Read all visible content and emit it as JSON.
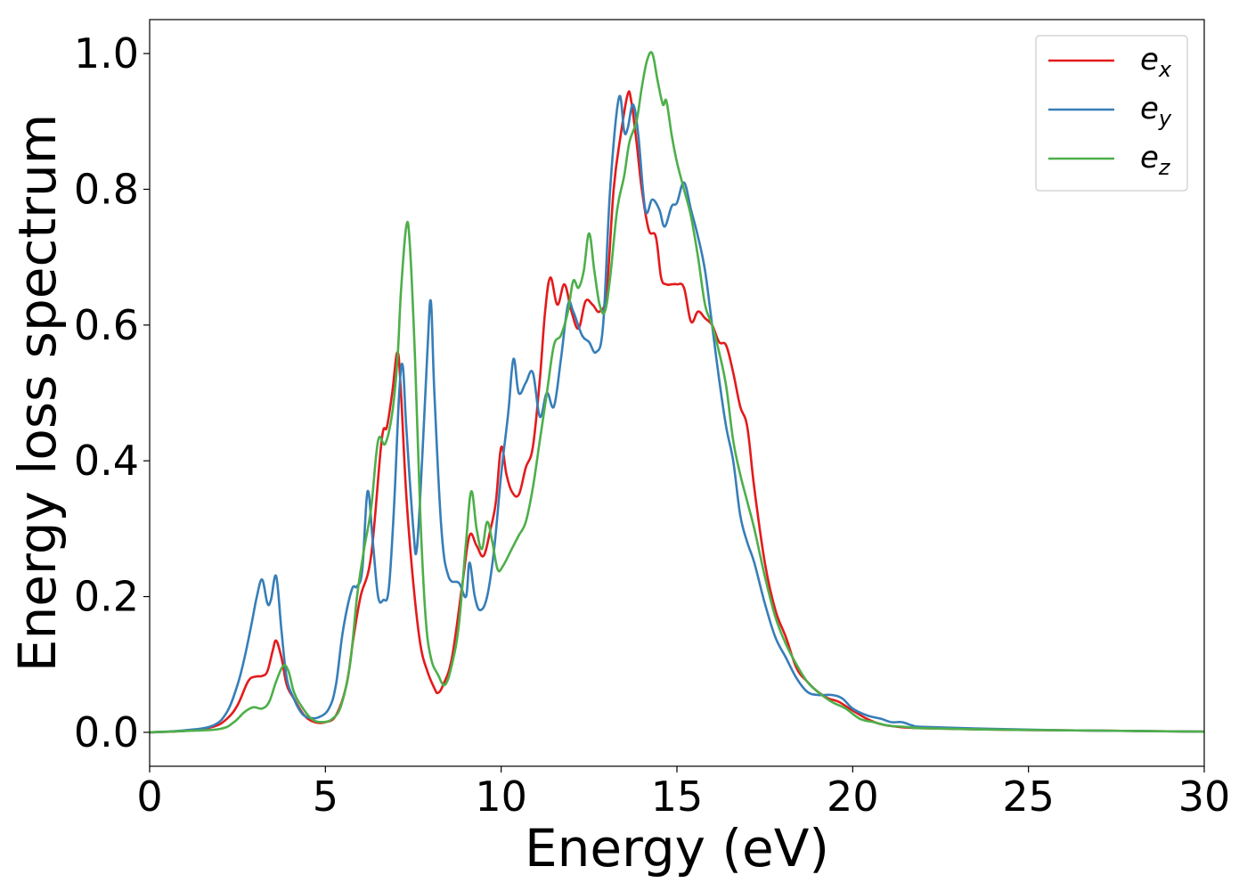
{
  "chart_data": {
    "type": "line",
    "xlabel": "Energy (eV)",
    "ylabel": "Energy loss spectrum",
    "xlim": [
      0,
      30
    ],
    "ylim": [
      -0.05,
      1.05
    ],
    "xticks": [
      0,
      5,
      10,
      15,
      20,
      25,
      30
    ],
    "yticks": [
      0.0,
      0.2,
      0.4,
      0.6,
      0.8,
      1.0
    ],
    "xtick_labels": [
      "0",
      "5",
      "10",
      "15",
      "20",
      "25",
      "30"
    ],
    "ytick_labels": [
      "0.0",
      "0.2",
      "0.4",
      "0.6",
      "0.8",
      "1.0"
    ],
    "grid": false,
    "legend_position": "top-right",
    "series": [
      {
        "name": "e_x",
        "legend_base": "e",
        "legend_sub": "x",
        "color": "#e41a1c",
        "points": [
          [
            0,
            0.0
          ],
          [
            1,
            0.002
          ],
          [
            1.8,
            0.008
          ],
          [
            2.2,
            0.02
          ],
          [
            2.5,
            0.04
          ],
          [
            2.8,
            0.075
          ],
          [
            3.0,
            0.082
          ],
          [
            3.2,
            0.083
          ],
          [
            3.35,
            0.09
          ],
          [
            3.5,
            0.12
          ],
          [
            3.6,
            0.135
          ],
          [
            3.75,
            0.11
          ],
          [
            3.9,
            0.07
          ],
          [
            4.1,
            0.05
          ],
          [
            4.4,
            0.025
          ],
          [
            4.7,
            0.015
          ],
          [
            5.0,
            0.015
          ],
          [
            5.3,
            0.025
          ],
          [
            5.6,
            0.07
          ],
          [
            5.8,
            0.14
          ],
          [
            6.0,
            0.2
          ],
          [
            6.3,
            0.26
          ],
          [
            6.6,
            0.43
          ],
          [
            6.75,
            0.45
          ],
          [
            6.9,
            0.5
          ],
          [
            7.05,
            0.56
          ],
          [
            7.15,
            0.5
          ],
          [
            7.3,
            0.35
          ],
          [
            7.5,
            0.22
          ],
          [
            7.7,
            0.13
          ],
          [
            7.9,
            0.09
          ],
          [
            8.1,
            0.065
          ],
          [
            8.2,
            0.058
          ],
          [
            8.35,
            0.07
          ],
          [
            8.6,
            0.11
          ],
          [
            8.9,
            0.22
          ],
          [
            9.1,
            0.29
          ],
          [
            9.3,
            0.275
          ],
          [
            9.5,
            0.26
          ],
          [
            9.7,
            0.3
          ],
          [
            9.85,
            0.34
          ],
          [
            10.0,
            0.42
          ],
          [
            10.15,
            0.38
          ],
          [
            10.3,
            0.355
          ],
          [
            10.5,
            0.35
          ],
          [
            10.7,
            0.39
          ],
          [
            10.9,
            0.42
          ],
          [
            11.1,
            0.52
          ],
          [
            11.25,
            0.62
          ],
          [
            11.4,
            0.67
          ],
          [
            11.6,
            0.63
          ],
          [
            11.8,
            0.66
          ],
          [
            12.0,
            0.62
          ],
          [
            12.2,
            0.595
          ],
          [
            12.4,
            0.635
          ],
          [
            12.6,
            0.63
          ],
          [
            12.8,
            0.62
          ],
          [
            13.0,
            0.65
          ],
          [
            13.2,
            0.8
          ],
          [
            13.4,
            0.88
          ],
          [
            13.6,
            0.94
          ],
          [
            13.7,
            0.93
          ],
          [
            13.85,
            0.87
          ],
          [
            14.0,
            0.8
          ],
          [
            14.2,
            0.74
          ],
          [
            14.4,
            0.73
          ],
          [
            14.55,
            0.67
          ],
          [
            14.7,
            0.66
          ],
          [
            14.85,
            0.66
          ],
          [
            15.0,
            0.66
          ],
          [
            15.2,
            0.655
          ],
          [
            15.4,
            0.605
          ],
          [
            15.6,
            0.62
          ],
          [
            15.8,
            0.61
          ],
          [
            16.0,
            0.6
          ],
          [
            16.2,
            0.575
          ],
          [
            16.4,
            0.57
          ],
          [
            16.6,
            0.53
          ],
          [
            16.8,
            0.48
          ],
          [
            17.0,
            0.45
          ],
          [
            17.2,
            0.36
          ],
          [
            17.5,
            0.25
          ],
          [
            17.8,
            0.18
          ],
          [
            18.1,
            0.14
          ],
          [
            18.4,
            0.095
          ],
          [
            18.7,
            0.075
          ],
          [
            19.0,
            0.06
          ],
          [
            19.3,
            0.05
          ],
          [
            19.6,
            0.045
          ],
          [
            20.0,
            0.032
          ],
          [
            20.4,
            0.02
          ],
          [
            20.8,
            0.012
          ],
          [
            21.3,
            0.008
          ],
          [
            22,
            0.006
          ],
          [
            24,
            0.004
          ],
          [
            26,
            0.003
          ],
          [
            28,
            0.002
          ],
          [
            30,
            0.001
          ]
        ]
      },
      {
        "name": "e_y",
        "legend_base": "e",
        "legend_sub": "y",
        "color": "#377eb8",
        "points": [
          [
            0,
            0.0
          ],
          [
            1,
            0.003
          ],
          [
            1.8,
            0.01
          ],
          [
            2.2,
            0.03
          ],
          [
            2.5,
            0.07
          ],
          [
            2.7,
            0.11
          ],
          [
            2.9,
            0.16
          ],
          [
            3.05,
            0.2
          ],
          [
            3.2,
            0.225
          ],
          [
            3.35,
            0.19
          ],
          [
            3.45,
            0.195
          ],
          [
            3.6,
            0.23
          ],
          [
            3.75,
            0.15
          ],
          [
            3.9,
            0.08
          ],
          [
            4.1,
            0.05
          ],
          [
            4.3,
            0.03
          ],
          [
            4.5,
            0.022
          ],
          [
            4.8,
            0.022
          ],
          [
            5.1,
            0.035
          ],
          [
            5.3,
            0.07
          ],
          [
            5.5,
            0.15
          ],
          [
            5.75,
            0.21
          ],
          [
            5.9,
            0.215
          ],
          [
            6.05,
            0.24
          ],
          [
            6.2,
            0.355
          ],
          [
            6.35,
            0.28
          ],
          [
            6.5,
            0.2
          ],
          [
            6.65,
            0.195
          ],
          [
            6.8,
            0.21
          ],
          [
            6.95,
            0.33
          ],
          [
            7.1,
            0.5
          ],
          [
            7.2,
            0.54
          ],
          [
            7.3,
            0.45
          ],
          [
            7.5,
            0.3
          ],
          [
            7.6,
            0.27
          ],
          [
            7.75,
            0.4
          ],
          [
            7.9,
            0.56
          ],
          [
            8.0,
            0.635
          ],
          [
            8.1,
            0.5
          ],
          [
            8.3,
            0.3
          ],
          [
            8.5,
            0.23
          ],
          [
            8.8,
            0.22
          ],
          [
            9.0,
            0.2
          ],
          [
            9.1,
            0.25
          ],
          [
            9.25,
            0.2
          ],
          [
            9.4,
            0.18
          ],
          [
            9.6,
            0.2
          ],
          [
            9.8,
            0.27
          ],
          [
            10.0,
            0.38
          ],
          [
            10.2,
            0.47
          ],
          [
            10.35,
            0.55
          ],
          [
            10.5,
            0.5
          ],
          [
            10.7,
            0.515
          ],
          [
            10.9,
            0.53
          ],
          [
            11.1,
            0.465
          ],
          [
            11.3,
            0.5
          ],
          [
            11.5,
            0.48
          ],
          [
            11.7,
            0.55
          ],
          [
            11.9,
            0.63
          ],
          [
            12.05,
            0.62
          ],
          [
            12.3,
            0.585
          ],
          [
            12.5,
            0.575
          ],
          [
            12.7,
            0.56
          ],
          [
            12.9,
            0.6
          ],
          [
            13.1,
            0.8
          ],
          [
            13.35,
            0.935
          ],
          [
            13.5,
            0.885
          ],
          [
            13.6,
            0.89
          ],
          [
            13.75,
            0.925
          ],
          [
            13.9,
            0.88
          ],
          [
            14.1,
            0.77
          ],
          [
            14.3,
            0.785
          ],
          [
            14.5,
            0.77
          ],
          [
            14.65,
            0.745
          ],
          [
            14.85,
            0.775
          ],
          [
            15.0,
            0.78
          ],
          [
            15.2,
            0.81
          ],
          [
            15.4,
            0.77
          ],
          [
            15.6,
            0.73
          ],
          [
            15.8,
            0.68
          ],
          [
            16.0,
            0.6
          ],
          [
            16.2,
            0.52
          ],
          [
            16.4,
            0.45
          ],
          [
            16.6,
            0.4
          ],
          [
            16.8,
            0.32
          ],
          [
            17.0,
            0.28
          ],
          [
            17.2,
            0.25
          ],
          [
            17.5,
            0.19
          ],
          [
            17.8,
            0.14
          ],
          [
            18.1,
            0.11
          ],
          [
            18.4,
            0.08
          ],
          [
            18.7,
            0.06
          ],
          [
            19.0,
            0.055
          ],
          [
            19.4,
            0.055
          ],
          [
            19.7,
            0.05
          ],
          [
            20.0,
            0.035
          ],
          [
            20.4,
            0.025
          ],
          [
            20.8,
            0.02
          ],
          [
            21.1,
            0.015
          ],
          [
            21.4,
            0.015
          ],
          [
            21.7,
            0.01
          ],
          [
            22,
            0.008
          ],
          [
            24,
            0.005
          ],
          [
            26,
            0.003
          ],
          [
            28,
            0.002
          ],
          [
            30,
            0.001
          ]
        ]
      },
      {
        "name": "e_z",
        "legend_base": "e",
        "legend_sub": "z",
        "color": "#4daf4a",
        "points": [
          [
            0,
            0.0
          ],
          [
            1,
            0.002
          ],
          [
            2.0,
            0.005
          ],
          [
            2.4,
            0.015
          ],
          [
            2.7,
            0.03
          ],
          [
            2.95,
            0.037
          ],
          [
            3.2,
            0.035
          ],
          [
            3.4,
            0.045
          ],
          [
            3.6,
            0.075
          ],
          [
            3.8,
            0.098
          ],
          [
            3.95,
            0.09
          ],
          [
            4.1,
            0.06
          ],
          [
            4.3,
            0.04
          ],
          [
            4.6,
            0.02
          ],
          [
            4.9,
            0.015
          ],
          [
            5.2,
            0.02
          ],
          [
            5.45,
            0.04
          ],
          [
            5.7,
            0.1
          ],
          [
            5.9,
            0.2
          ],
          [
            6.1,
            0.27
          ],
          [
            6.3,
            0.33
          ],
          [
            6.5,
            0.43
          ],
          [
            6.7,
            0.425
          ],
          [
            6.9,
            0.47
          ],
          [
            7.05,
            0.55
          ],
          [
            7.15,
            0.65
          ],
          [
            7.3,
            0.745
          ],
          [
            7.4,
            0.72
          ],
          [
            7.55,
            0.55
          ],
          [
            7.7,
            0.32
          ],
          [
            7.85,
            0.17
          ],
          [
            8.0,
            0.11
          ],
          [
            8.2,
            0.085
          ],
          [
            8.4,
            0.07
          ],
          [
            8.6,
            0.1
          ],
          [
            8.8,
            0.16
          ],
          [
            9.0,
            0.28
          ],
          [
            9.15,
            0.355
          ],
          [
            9.3,
            0.3
          ],
          [
            9.45,
            0.27
          ],
          [
            9.6,
            0.31
          ],
          [
            9.75,
            0.28
          ],
          [
            9.9,
            0.24
          ],
          [
            10.05,
            0.245
          ],
          [
            10.3,
            0.27
          ],
          [
            10.5,
            0.29
          ],
          [
            10.7,
            0.31
          ],
          [
            10.9,
            0.36
          ],
          [
            11.1,
            0.43
          ],
          [
            11.3,
            0.5
          ],
          [
            11.5,
            0.57
          ],
          [
            11.7,
            0.585
          ],
          [
            11.9,
            0.62
          ],
          [
            12.05,
            0.665
          ],
          [
            12.2,
            0.655
          ],
          [
            12.35,
            0.68
          ],
          [
            12.5,
            0.735
          ],
          [
            12.65,
            0.68
          ],
          [
            12.8,
            0.63
          ],
          [
            12.95,
            0.62
          ],
          [
            13.1,
            0.67
          ],
          [
            13.3,
            0.77
          ],
          [
            13.5,
            0.82
          ],
          [
            13.65,
            0.87
          ],
          [
            13.85,
            0.9
          ],
          [
            14.0,
            0.95
          ],
          [
            14.15,
            0.99
          ],
          [
            14.3,
            1.0
          ],
          [
            14.45,
            0.96
          ],
          [
            14.6,
            0.925
          ],
          [
            14.7,
            0.93
          ],
          [
            14.85,
            0.88
          ],
          [
            15.0,
            0.84
          ],
          [
            15.2,
            0.8
          ],
          [
            15.4,
            0.76
          ],
          [
            15.6,
            0.7
          ],
          [
            15.8,
            0.63
          ],
          [
            16.0,
            0.6
          ],
          [
            16.2,
            0.56
          ],
          [
            16.4,
            0.51
          ],
          [
            16.6,
            0.43
          ],
          [
            16.8,
            0.38
          ],
          [
            17.0,
            0.34
          ],
          [
            17.2,
            0.3
          ],
          [
            17.5,
            0.23
          ],
          [
            17.8,
            0.17
          ],
          [
            18.1,
            0.13
          ],
          [
            18.4,
            0.1
          ],
          [
            18.7,
            0.075
          ],
          [
            19.0,
            0.06
          ],
          [
            19.4,
            0.045
          ],
          [
            19.8,
            0.035
          ],
          [
            20.2,
            0.02
          ],
          [
            20.6,
            0.015
          ],
          [
            21.0,
            0.01
          ],
          [
            21.5,
            0.008
          ],
          [
            22,
            0.006
          ],
          [
            24,
            0.004
          ],
          [
            26,
            0.003
          ],
          [
            28,
            0.002
          ],
          [
            30,
            0.001
          ]
        ]
      }
    ]
  }
}
